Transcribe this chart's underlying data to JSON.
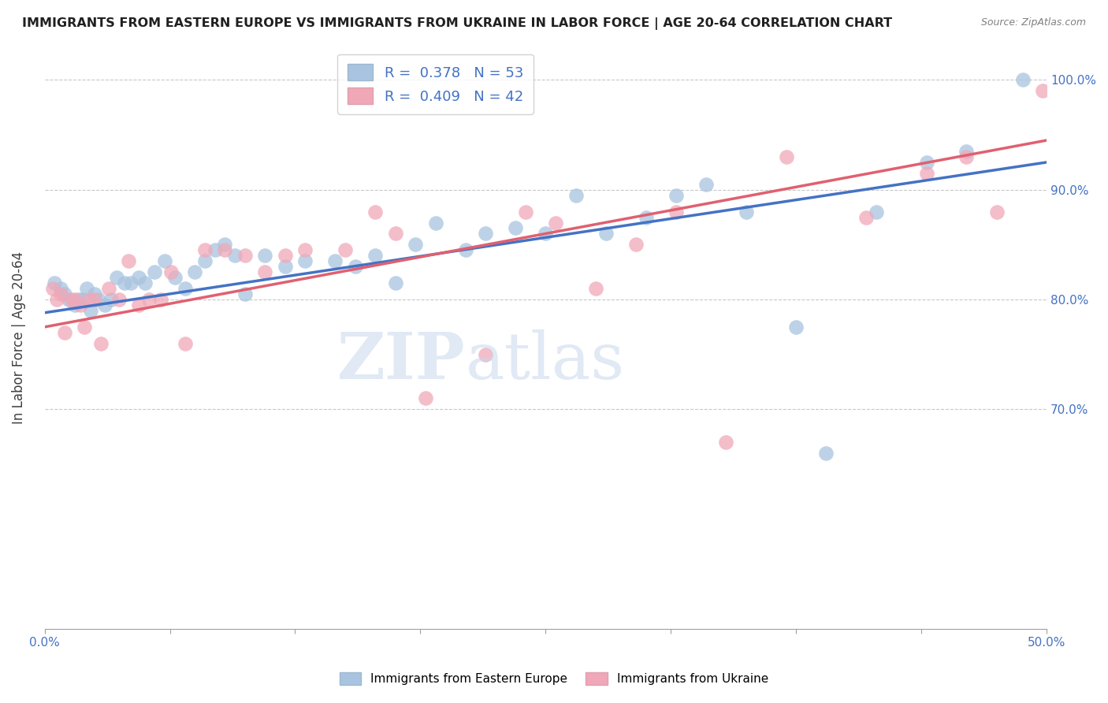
{
  "title": "IMMIGRANTS FROM EASTERN EUROPE VS IMMIGRANTS FROM UKRAINE IN LABOR FORCE | AGE 20-64 CORRELATION CHART",
  "source": "Source: ZipAtlas.com",
  "ylabel": "In Labor Force | Age 20-64",
  "xlim": [
    0.0,
    0.5
  ],
  "ylim": [
    0.5,
    1.03
  ],
  "yticks": [
    0.7,
    0.8,
    0.9,
    1.0
  ],
  "ytick_labels": [
    "70.0%",
    "80.0%",
    "90.0%",
    "100.0%"
  ],
  "xticks": [
    0.0,
    0.0625,
    0.125,
    0.1875,
    0.25,
    0.3125,
    0.375,
    0.4375,
    0.5
  ],
  "xtick_labels": [
    "0.0%",
    "",
    "",
    "",
    "",
    "",
    "",
    "",
    "50.0%"
  ],
  "blue_color": "#a8c4e0",
  "pink_color": "#f0a8b8",
  "blue_line_color": "#4472c4",
  "pink_line_color": "#e06070",
  "legend_text_color": "#4472c4",
  "R_blue": 0.378,
  "N_blue": 53,
  "R_pink": 0.409,
  "N_pink": 42,
  "legend_label_blue": "Immigrants from Eastern Europe",
  "legend_label_pink": "Immigrants from Ukraine",
  "blue_scatter_x": [
    0.005,
    0.008,
    0.01,
    0.012,
    0.015,
    0.017,
    0.019,
    0.021,
    0.023,
    0.025,
    0.027,
    0.03,
    0.033,
    0.036,
    0.04,
    0.043,
    0.047,
    0.05,
    0.055,
    0.06,
    0.065,
    0.07,
    0.075,
    0.08,
    0.085,
    0.09,
    0.095,
    0.1,
    0.11,
    0.12,
    0.13,
    0.145,
    0.155,
    0.165,
    0.175,
    0.185,
    0.195,
    0.21,
    0.22,
    0.235,
    0.25,
    0.265,
    0.28,
    0.3,
    0.315,
    0.33,
    0.35,
    0.375,
    0.39,
    0.415,
    0.44,
    0.46,
    0.488
  ],
  "blue_scatter_y": [
    0.815,
    0.81,
    0.805,
    0.8,
    0.795,
    0.8,
    0.8,
    0.81,
    0.79,
    0.805,
    0.8,
    0.795,
    0.8,
    0.82,
    0.815,
    0.815,
    0.82,
    0.815,
    0.825,
    0.835,
    0.82,
    0.81,
    0.825,
    0.835,
    0.845,
    0.85,
    0.84,
    0.805,
    0.84,
    0.83,
    0.835,
    0.835,
    0.83,
    0.84,
    0.815,
    0.85,
    0.87,
    0.845,
    0.86,
    0.865,
    0.86,
    0.895,
    0.86,
    0.875,
    0.895,
    0.905,
    0.88,
    0.775,
    0.66,
    0.88,
    0.925,
    0.935,
    1.0
  ],
  "pink_scatter_x": [
    0.004,
    0.006,
    0.008,
    0.01,
    0.013,
    0.015,
    0.018,
    0.02,
    0.022,
    0.025,
    0.028,
    0.032,
    0.037,
    0.042,
    0.047,
    0.052,
    0.058,
    0.063,
    0.07,
    0.08,
    0.09,
    0.1,
    0.11,
    0.12,
    0.13,
    0.15,
    0.165,
    0.175,
    0.19,
    0.22,
    0.24,
    0.255,
    0.275,
    0.295,
    0.315,
    0.34,
    0.37,
    0.41,
    0.44,
    0.46,
    0.475,
    0.498
  ],
  "pink_scatter_y": [
    0.81,
    0.8,
    0.805,
    0.77,
    0.8,
    0.8,
    0.795,
    0.775,
    0.8,
    0.8,
    0.76,
    0.81,
    0.8,
    0.835,
    0.795,
    0.8,
    0.8,
    0.825,
    0.76,
    0.845,
    0.845,
    0.84,
    0.825,
    0.84,
    0.845,
    0.845,
    0.88,
    0.86,
    0.71,
    0.75,
    0.88,
    0.87,
    0.81,
    0.85,
    0.88,
    0.67,
    0.93,
    0.875,
    0.915,
    0.93,
    0.88,
    0.99
  ],
  "trend_blue_x0": 0.0,
  "trend_blue_y0": 0.788,
  "trend_blue_x1": 0.5,
  "trend_blue_y1": 0.925,
  "trend_pink_x0": 0.0,
  "trend_pink_y0": 0.775,
  "trend_pink_x1": 0.5,
  "trend_pink_y1": 0.945
}
